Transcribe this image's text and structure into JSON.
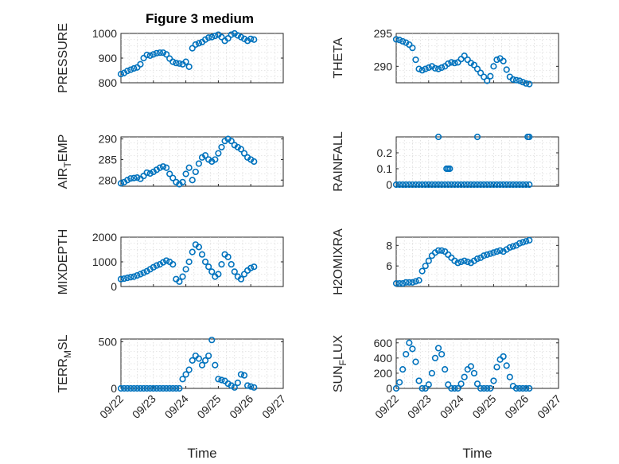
{
  "figure": {
    "title": "Figure 3 medium",
    "width": 778,
    "height": 583
  },
  "colors": {
    "marker": "#0072BD",
    "axis": "#262626",
    "grid": "#cfcfcf",
    "background": "#ffffff"
  },
  "chart_data": [
    {
      "id": "pressure",
      "type": "scatter",
      "title": "Figure 3 medium",
      "ylabel": "PRESSURE",
      "ylim": [
        800,
        1000
      ],
      "yticks": [
        800,
        900,
        1000
      ],
      "xlim": [
        0,
        5
      ],
      "show_xticks": false,
      "x": [
        0.0,
        0.1,
        0.2,
        0.3,
        0.4,
        0.5,
        0.6,
        0.7,
        0.8,
        0.9,
        1.0,
        1.1,
        1.2,
        1.3,
        1.4,
        1.5,
        1.6,
        1.7,
        1.8,
        1.9,
        2.0,
        2.1,
        2.2,
        2.3,
        2.4,
        2.5,
        2.6,
        2.7,
        2.8,
        2.9,
        3.0,
        3.1,
        3.2,
        3.3,
        3.4,
        3.5,
        3.6,
        3.7,
        3.8,
        3.9,
        4.0,
        4.1
      ],
      "y": [
        835,
        840,
        848,
        853,
        858,
        862,
        875,
        900,
        913,
        910,
        915,
        920,
        922,
        922,
        915,
        898,
        885,
        880,
        878,
        875,
        885,
        865,
        940,
        955,
        960,
        965,
        975,
        983,
        985,
        990,
        995,
        985,
        970,
        980,
        995,
        1000,
        992,
        985,
        978,
        970,
        978,
        975
      ]
    },
    {
      "id": "theta",
      "type": "scatter",
      "ylabel": "THETA",
      "ylim": [
        287.5,
        295
      ],
      "yticks": [
        290,
        295
      ],
      "xlim": [
        0,
        5
      ],
      "show_xticks": false,
      "x": [
        0.0,
        0.1,
        0.2,
        0.3,
        0.4,
        0.5,
        0.6,
        0.7,
        0.8,
        0.9,
        1.0,
        1.1,
        1.2,
        1.3,
        1.4,
        1.5,
        1.6,
        1.7,
        1.8,
        1.9,
        2.0,
        2.1,
        2.2,
        2.3,
        2.4,
        2.5,
        2.6,
        2.7,
        2.8,
        2.9,
        3.0,
        3.1,
        3.2,
        3.3,
        3.4,
        3.5,
        3.6,
        3.7,
        3.8,
        3.9,
        4.0,
        4.1
      ],
      "y": [
        294.1,
        294.0,
        293.8,
        293.6,
        293.3,
        292.8,
        291.0,
        289.6,
        289.4,
        289.6,
        289.8,
        290.0,
        289.7,
        289.6,
        289.8,
        290.0,
        290.4,
        290.6,
        290.5,
        290.6,
        291.1,
        291.6,
        291.0,
        290.5,
        290.2,
        289.6,
        289.0,
        288.4,
        287.8,
        288.5,
        290.0,
        291.0,
        291.2,
        290.8,
        289.5,
        288.4,
        288.0,
        287.9,
        287.8,
        287.6,
        287.4,
        287.3
      ]
    },
    {
      "id": "air_temp",
      "type": "scatter",
      "ylabel": "AIR_TEMP",
      "ylim": [
        278.5,
        290.5
      ],
      "yticks": [
        280,
        285,
        290
      ],
      "xlim": [
        0,
        5
      ],
      "show_xticks": false,
      "x": [
        0.0,
        0.1,
        0.2,
        0.3,
        0.4,
        0.5,
        0.6,
        0.7,
        0.8,
        0.9,
        1.0,
        1.1,
        1.2,
        1.3,
        1.4,
        1.5,
        1.6,
        1.7,
        1.8,
        1.9,
        2.0,
        2.1,
        2.2,
        2.3,
        2.4,
        2.5,
        2.6,
        2.7,
        2.8,
        2.9,
        3.0,
        3.1,
        3.2,
        3.3,
        3.4,
        3.5,
        3.6,
        3.7,
        3.8,
        3.9,
        4.0,
        4.1
      ],
      "y": [
        279.2,
        279.5,
        280.0,
        280.4,
        280.5,
        280.6,
        280.3,
        281.0,
        281.8,
        281.6,
        282.0,
        282.5,
        283.0,
        283.3,
        283.0,
        281.5,
        280.5,
        279.5,
        279.0,
        279.5,
        281.5,
        283.0,
        280.0,
        282.0,
        284.0,
        285.5,
        286.0,
        285.0,
        284.5,
        285.0,
        286.5,
        288.0,
        289.5,
        290.0,
        289.5,
        288.5,
        288.0,
        287.5,
        286.5,
        285.5,
        285.0,
        284.5
      ]
    },
    {
      "id": "rainfall",
      "type": "scatter",
      "ylabel": "RAINFALL",
      "ylim": [
        -0.01,
        0.3
      ],
      "yticks": [
        0,
        0.1,
        0.2
      ],
      "xlim": [
        0,
        5
      ],
      "show_xticks": false,
      "x": [
        0.0,
        0.1,
        0.2,
        0.3,
        0.4,
        0.5,
        0.6,
        0.7,
        0.8,
        0.9,
        1.0,
        1.1,
        1.2,
        1.3,
        1.4,
        1.5,
        1.6,
        1.7,
        1.8,
        1.9,
        2.0,
        2.1,
        2.2,
        2.3,
        2.4,
        2.5,
        2.6,
        2.7,
        2.8,
        2.9,
        3.0,
        3.1,
        3.2,
        3.3,
        3.4,
        3.5,
        3.6,
        3.7,
        3.8,
        3.9,
        4.0,
        4.1,
        1.3,
        1.55,
        1.6,
        1.65,
        2.5,
        4.05,
        4.1
      ],
      "y": [
        0,
        0,
        0,
        0,
        0,
        0,
        0,
        0,
        0,
        0,
        0,
        0,
        0,
        0,
        0,
        0,
        0,
        0,
        0,
        0,
        0,
        0,
        0,
        0,
        0,
        0,
        0,
        0,
        0,
        0,
        0,
        0,
        0,
        0,
        0,
        0,
        0,
        0,
        0,
        0,
        0,
        0,
        0.3,
        0.1,
        0.1,
        0.1,
        0.3,
        0.3,
        0.3
      ]
    },
    {
      "id": "mixdepth",
      "type": "scatter",
      "ylabel": "MIXDEPTH",
      "ylim": [
        0,
        2000
      ],
      "yticks": [
        0,
        1000,
        2000
      ],
      "xlim": [
        0,
        5
      ],
      "show_xticks": false,
      "x": [
        0.0,
        0.1,
        0.2,
        0.3,
        0.4,
        0.5,
        0.6,
        0.7,
        0.8,
        0.9,
        1.0,
        1.1,
        1.2,
        1.3,
        1.4,
        1.5,
        1.6,
        1.7,
        1.8,
        1.9,
        2.0,
        2.1,
        2.2,
        2.3,
        2.4,
        2.5,
        2.6,
        2.7,
        2.8,
        2.9,
        3.0,
        3.1,
        3.2,
        3.3,
        3.4,
        3.5,
        3.6,
        3.7,
        3.8,
        3.9,
        4.0,
        4.1
      ],
      "y": [
        300,
        320,
        350,
        380,
        400,
        450,
        500,
        560,
        620,
        700,
        780,
        850,
        900,
        980,
        1050,
        1000,
        900,
        300,
        200,
        400,
        700,
        1000,
        1400,
        1700,
        1600,
        1300,
        1000,
        800,
        600,
        400,
        500,
        900,
        1300,
        1200,
        900,
        600,
        400,
        300,
        500,
        650,
        750,
        800
      ]
    },
    {
      "id": "h2omixra",
      "type": "scatter",
      "ylabel": "H2OMIXRA",
      "ylim": [
        4,
        8.8
      ],
      "yticks": [
        6,
        8
      ],
      "xlim": [
        0,
        5
      ],
      "show_xticks": false,
      "x": [
        0.0,
        0.1,
        0.2,
        0.3,
        0.4,
        0.5,
        0.6,
        0.7,
        0.8,
        0.9,
        1.0,
        1.1,
        1.2,
        1.3,
        1.4,
        1.5,
        1.6,
        1.7,
        1.8,
        1.9,
        2.0,
        2.1,
        2.2,
        2.3,
        2.4,
        2.5,
        2.6,
        2.7,
        2.8,
        2.9,
        3.0,
        3.1,
        3.2,
        3.3,
        3.4,
        3.5,
        3.6,
        3.7,
        3.8,
        3.9,
        4.0,
        4.1
      ],
      "y": [
        4.3,
        4.3,
        4.3,
        4.4,
        4.4,
        4.4,
        4.5,
        4.6,
        5.5,
        6.0,
        6.5,
        7.0,
        7.3,
        7.5,
        7.5,
        7.4,
        7.1,
        6.8,
        6.5,
        6.3,
        6.4,
        6.5,
        6.4,
        6.3,
        6.5,
        6.7,
        6.8,
        7.0,
        7.1,
        7.2,
        7.3,
        7.4,
        7.5,
        7.4,
        7.6,
        7.8,
        7.9,
        8.0,
        8.2,
        8.3,
        8.4,
        8.5
      ]
    },
    {
      "id": "terr_msl",
      "type": "scatter",
      "ylabel": "TERR_MSL",
      "ylim": [
        0,
        530
      ],
      "yticks": [
        0,
        500
      ],
      "xlim": [
        0,
        5
      ],
      "show_xticks": true,
      "xticks": [
        0,
        1,
        2,
        3,
        4,
        5
      ],
      "xticklabels": [
        "09/22",
        "09/23",
        "09/24",
        "09/25",
        "09/26",
        "09/27"
      ],
      "xlabel": "Time",
      "x": [
        0.0,
        0.1,
        0.2,
        0.3,
        0.4,
        0.5,
        0.6,
        0.7,
        0.8,
        0.9,
        1.0,
        1.1,
        1.2,
        1.3,
        1.4,
        1.5,
        1.6,
        1.7,
        1.8,
        1.9,
        2.0,
        2.1,
        2.2,
        2.3,
        2.4,
        2.5,
        2.6,
        2.7,
        2.8,
        2.9,
        3.0,
        3.1,
        3.2,
        3.3,
        3.4,
        3.5,
        3.6,
        3.7,
        3.8,
        3.9,
        4.0,
        4.1
      ],
      "y": [
        0,
        0,
        0,
        0,
        0,
        0,
        0,
        0,
        0,
        0,
        0,
        0,
        0,
        0,
        0,
        0,
        0,
        0,
        0,
        100,
        150,
        200,
        300,
        350,
        320,
        250,
        300,
        350,
        520,
        250,
        100,
        90,
        80,
        50,
        30,
        10,
        60,
        150,
        140,
        30,
        20,
        10
      ]
    },
    {
      "id": "sun_flux",
      "type": "scatter",
      "ylabel": "SUN_FLUX",
      "ylim": [
        0,
        650
      ],
      "yticks": [
        0,
        200,
        400,
        600
      ],
      "xlim": [
        0,
        5
      ],
      "show_xticks": true,
      "xticks": [
        0,
        1,
        2,
        3,
        4,
        5
      ],
      "xticklabels": [
        "09/22",
        "09/23",
        "09/24",
        "09/25",
        "09/26",
        "09/27"
      ],
      "xlabel": "Time",
      "x": [
        0.0,
        0.1,
        0.2,
        0.3,
        0.4,
        0.5,
        0.6,
        0.7,
        0.8,
        0.9,
        1.0,
        1.1,
        1.2,
        1.3,
        1.4,
        1.5,
        1.6,
        1.7,
        1.8,
        1.9,
        2.0,
        2.1,
        2.2,
        2.3,
        2.4,
        2.5,
        2.6,
        2.7,
        2.8,
        2.9,
        3.0,
        3.1,
        3.2,
        3.3,
        3.4,
        3.5,
        3.6,
        3.7,
        3.8,
        3.9,
        4.0,
        4.1
      ],
      "y": [
        0,
        80,
        250,
        450,
        600,
        520,
        350,
        100,
        0,
        0,
        50,
        200,
        400,
        530,
        450,
        250,
        50,
        0,
        0,
        0,
        60,
        150,
        250,
        290,
        200,
        60,
        0,
        0,
        0,
        0,
        100,
        280,
        380,
        420,
        300,
        150,
        30,
        0,
        0,
        0,
        0,
        0
      ]
    }
  ]
}
